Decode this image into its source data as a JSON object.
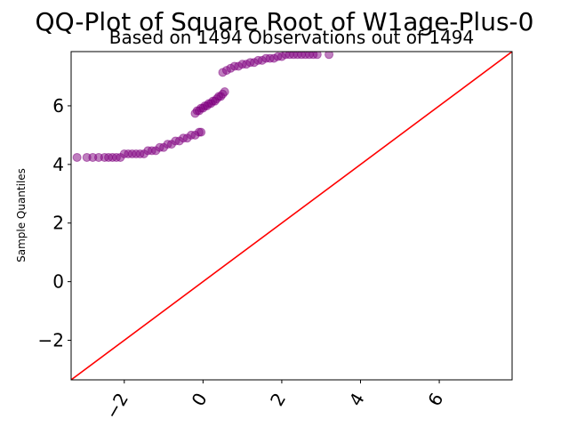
{
  "chart_data": {
    "type": "scatter",
    "title": "QQ-Plot of Square Root of W1age-Plus-0",
    "subtitle": "Based on 1494 Observations out of 1494",
    "xlabel": "",
    "ylabel": "Sample Quantiles",
    "xlim": [
      -3.35,
      7.85
    ],
    "ylim": [
      -3.35,
      7.85
    ],
    "x_ticks": [
      -2,
      0,
      2,
      4,
      6
    ],
    "x_tick_labels": [
      "−2",
      "0",
      "2",
      "4",
      "6"
    ],
    "y_ticks": [
      -2,
      0,
      2,
      4,
      6
    ],
    "y_tick_labels": [
      "−2",
      "0",
      "2",
      "4",
      "6"
    ],
    "grid": false,
    "marker_color": "#800080",
    "line_color": "#ff0000",
    "reference_line": {
      "slope": 1,
      "intercept": 0
    },
    "points": {
      "x": [
        -3.2,
        -2.95,
        -2.8,
        -2.65,
        -2.5,
        -2.4,
        -2.3,
        -2.2,
        -2.1,
        -2.0,
        -1.9,
        -1.8,
        -1.7,
        -1.6,
        -1.5,
        -1.4,
        -1.3,
        -1.2,
        -1.1,
        -1.0,
        -0.9,
        -0.8,
        -0.7,
        -0.6,
        -0.5,
        -0.4,
        -0.3,
        -0.2,
        -0.1,
        -0.05,
        -0.2,
        -0.15,
        -0.1,
        -0.05,
        0.0,
        0.05,
        0.1,
        0.15,
        0.2,
        0.25,
        0.3,
        0.35,
        0.4,
        0.45,
        0.5,
        0.55,
        0.5,
        0.6,
        0.7,
        0.8,
        0.9,
        1.0,
        1.1,
        1.2,
        1.3,
        1.4,
        1.5,
        1.6,
        1.7,
        1.8,
        1.9,
        2.0,
        2.1,
        2.2,
        2.3,
        2.4,
        2.5,
        2.6,
        2.7,
        2.8,
        2.9,
        3.2
      ],
      "y": [
        4.24,
        4.24,
        4.24,
        4.24,
        4.24,
        4.24,
        4.24,
        4.24,
        4.24,
        4.36,
        4.36,
        4.36,
        4.36,
        4.36,
        4.36,
        4.47,
        4.47,
        4.47,
        4.58,
        4.58,
        4.69,
        4.69,
        4.8,
        4.8,
        4.9,
        4.9,
        5.0,
        5.0,
        5.1,
        5.1,
        5.74,
        5.83,
        5.83,
        5.92,
        5.92,
        6.0,
        6.0,
        6.08,
        6.08,
        6.16,
        6.16,
        6.24,
        6.32,
        6.32,
        6.4,
        6.48,
        7.14,
        7.21,
        7.28,
        7.35,
        7.35,
        7.42,
        7.42,
        7.48,
        7.48,
        7.55,
        7.55,
        7.62,
        7.62,
        7.62,
        7.68,
        7.68,
        7.75,
        7.75,
        7.75,
        7.75,
        7.75,
        7.75,
        7.75,
        7.75,
        7.75,
        7.75
      ]
    }
  }
}
